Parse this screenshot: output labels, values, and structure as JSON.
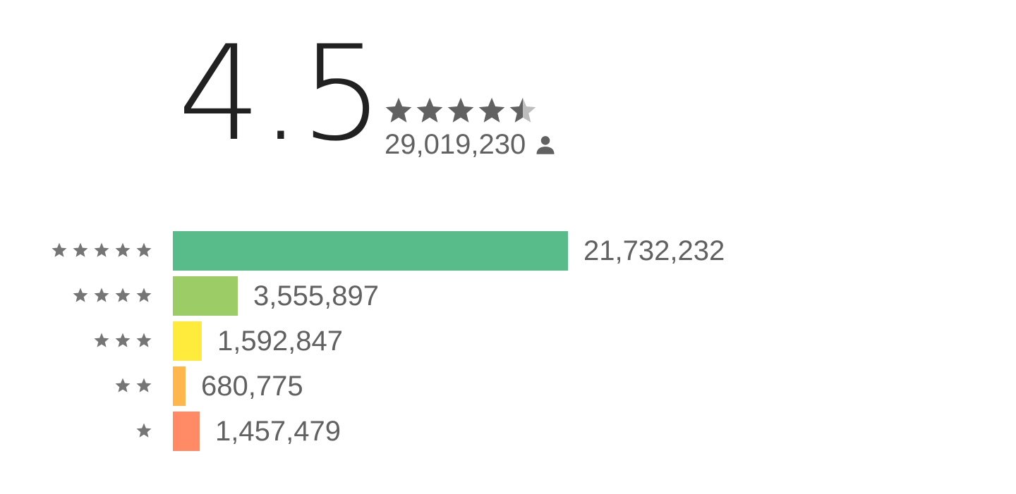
{
  "rating": {
    "score": "4.5",
    "stars_filled": 4.5,
    "total_reviews": "29,019,230",
    "reviewer_icon": "person-icon",
    "star_color": "#616161"
  },
  "histogram": [
    {
      "stars": 5,
      "count": "21,732,232",
      "value": 21732232,
      "color": "#57bb8a"
    },
    {
      "stars": 4,
      "count": "3,555,897",
      "value": 3555897,
      "color": "#9ccc65"
    },
    {
      "stars": 3,
      "count": "1,592,847",
      "value": 1592847,
      "color": "#ffeb3b"
    },
    {
      "stars": 2,
      "count": "680,775",
      "value": 680775,
      "color": "#ffb74d"
    },
    {
      "stars": 1,
      "count": "1,457,479",
      "value": 1457479,
      "color": "#ff8a65"
    }
  ]
}
